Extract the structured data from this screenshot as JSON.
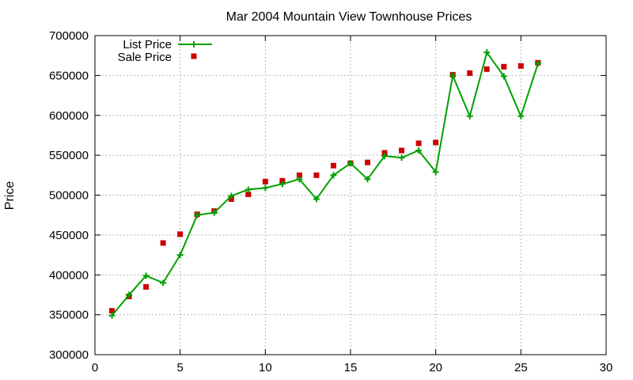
{
  "chart_data": {
    "type": "line",
    "title": "Mar 2004 Mountain View Townhouse Prices",
    "xlabel": "",
    "ylabel": "Price",
    "xlim": [
      0,
      30
    ],
    "ylim": [
      300000,
      700000
    ],
    "x_ticks": [
      0,
      5,
      10,
      15,
      20,
      25,
      30
    ],
    "y_ticks": [
      300000,
      350000,
      400000,
      450000,
      500000,
      550000,
      600000,
      650000,
      700000
    ],
    "grid": true,
    "legend_position": "top-left",
    "series": [
      {
        "name": "List Price",
        "style": "line+cross",
        "color": "#00a000",
        "x": [
          1,
          2,
          3,
          4,
          5,
          6,
          7,
          8,
          9,
          10,
          11,
          12,
          13,
          14,
          15,
          16,
          17,
          18,
          19,
          20,
          21,
          22,
          23,
          24,
          25,
          26
        ],
        "values": [
          349000,
          375000,
          399000,
          390000,
          425000,
          475000,
          478000,
          499000,
          507000,
          509000,
          514000,
          520000,
          495000,
          525000,
          540000,
          520000,
          549000,
          547000,
          556000,
          529000,
          650000,
          599000,
          679000,
          649000,
          599000,
          665000
        ]
      },
      {
        "name": "Sale Price",
        "style": "square",
        "color": "#cc0000",
        "x": [
          1,
          2,
          3,
          4,
          5,
          6,
          7,
          8,
          9,
          10,
          11,
          12,
          13,
          14,
          15,
          16,
          17,
          18,
          19,
          20,
          21,
          22,
          23,
          24,
          25,
          26
        ],
        "values": [
          355000,
          373000,
          385000,
          440000,
          451000,
          476000,
          480000,
          495000,
          501000,
          517000,
          518000,
          525000,
          525000,
          537000,
          540000,
          541000,
          553000,
          556000,
          565000,
          566000,
          651000,
          653000,
          658000,
          661000,
          662000,
          666000
        ]
      }
    ]
  }
}
